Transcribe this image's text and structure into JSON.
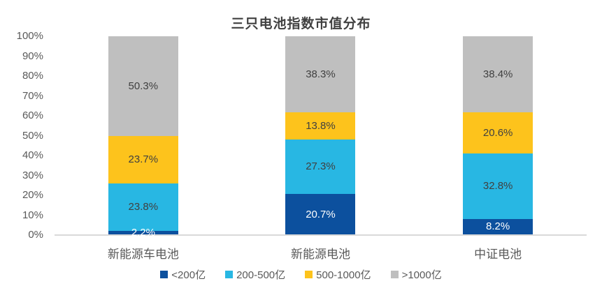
{
  "chart_data": {
    "type": "bar",
    "stacked": true,
    "percent": true,
    "title": "三只电池指数市值分布",
    "categories": [
      "新能源车电池",
      "新能源电池",
      "中证电池"
    ],
    "series": [
      {
        "name": "<200亿",
        "color": "#0c509e",
        "label_color": "#ffffff",
        "values": [
          2.2,
          20.7,
          8.2
        ]
      },
      {
        "name": "200-500亿",
        "color": "#28b7e3",
        "label_color": "#404040",
        "values": [
          23.8,
          27.3,
          32.8
        ]
      },
      {
        "name": "500-1000亿",
        "color": "#fdc31c",
        "label_color": "#404040",
        "values": [
          23.7,
          13.8,
          20.6
        ]
      },
      {
        "name": ">1000亿",
        "color": "#bfbfbf",
        "label_color": "#404040",
        "values": [
          50.3,
          38.3,
          38.4
        ]
      }
    ],
    "y_ticks": [
      "100%",
      "90%",
      "80%",
      "70%",
      "60%",
      "50%",
      "40%",
      "30%",
      "20%",
      "10%",
      "0%"
    ],
    "ylim": [
      0,
      100
    ],
    "gridlines": false,
    "legend_position": "bottom",
    "colors": {
      "title_text": "#404040",
      "axis_text": "#595959",
      "axis_line": "#d9d9d9",
      "background": "#ffffff"
    }
  }
}
